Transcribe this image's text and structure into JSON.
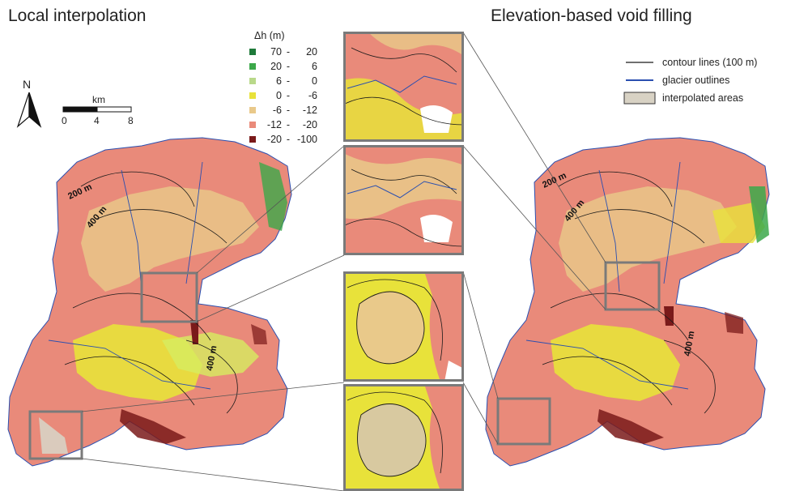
{
  "titles": {
    "left": "Local interpolation",
    "right": "Elevation-based void filling"
  },
  "legend": {
    "header": "Δh (m)",
    "classes": [
      {
        "low": "70",
        "high": "20",
        "color": "#1f7a3a"
      },
      {
        "low": "20",
        "high": "6",
        "color": "#3ca84a"
      },
      {
        "low": "6",
        "high": "0",
        "color": "#b9d98a"
      },
      {
        "low": "0",
        "high": "-6",
        "color": "#e8e23a"
      },
      {
        "low": "-6",
        "high": "-12",
        "color": "#e9c98a"
      },
      {
        "low": "-12",
        "high": "-20",
        "color": "#e98a7a"
      },
      {
        "low": "-20",
        "high": "-100",
        "color": "#7a1a1a"
      }
    ]
  },
  "layers_legend": {
    "contour": "contour lines (100 m)",
    "glacier": "glacier outlines",
    "interp": "interpolated areas"
  },
  "north": "N",
  "scale": {
    "unit": "km",
    "ticks": [
      "0",
      "4",
      "8"
    ]
  },
  "contour_labels_left": [
    "200 m",
    "400 m",
    "400 m"
  ],
  "contour_labels_right": [
    "200 m",
    "400 m",
    "400 m"
  ],
  "colors": {
    "contour": "#1a1a1a",
    "glacier": "#2a4fb0",
    "interp_fill": "#d8d2c4",
    "frame": "#7a7a7a"
  }
}
